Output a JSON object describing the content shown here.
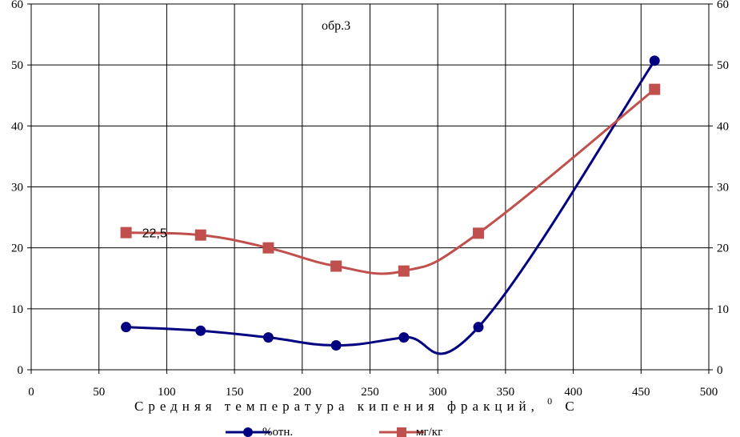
{
  "chart_data": {
    "type": "line",
    "title": "",
    "annotation": "обр.3",
    "xlabel": "Средняя температура кипения фракций,",
    "xlabel_unit_sup": "0",
    "xlabel_unit": "С",
    "ylabel": "",
    "xlim": [
      0,
      500
    ],
    "ylim": [
      0,
      60
    ],
    "y2lim": [
      0,
      60
    ],
    "xticks": [
      0,
      50,
      100,
      150,
      200,
      250,
      300,
      350,
      400,
      450,
      500
    ],
    "yticks": [
      0,
      10,
      20,
      30,
      40,
      50,
      60
    ],
    "grid": true,
    "legend_position": "bottom",
    "series": [
      {
        "name": "%отн.",
        "color": "#000080",
        "marker": "circle",
        "x": [
          70,
          125,
          175,
          225,
          275,
          330,
          460
        ],
        "y": [
          7,
          6.4,
          5.3,
          4,
          5.3,
          7,
          50.7
        ]
      },
      {
        "name": "мг/кг",
        "color": "#C0504D",
        "marker": "square",
        "x": [
          70,
          125,
          175,
          225,
          275,
          330,
          460
        ],
        "y": [
          22.5,
          22.1,
          20,
          17,
          16.2,
          22.4,
          46
        ]
      }
    ],
    "data_labels": [
      {
        "series": 1,
        "point": 0,
        "text": "22,5"
      }
    ]
  }
}
